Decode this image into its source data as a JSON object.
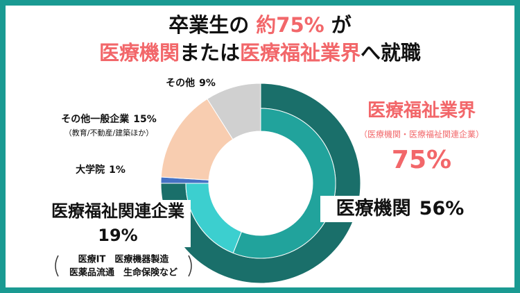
{
  "chart_data": {
    "type": "donut",
    "title": {
      "line1": [
        "卒業生の",
        "約75%",
        "が"
      ],
      "line2": [
        "医療機関",
        "または",
        "医療福祉業界",
        "へ就職"
      ]
    },
    "categories": [
      "医療機関",
      "医療福祉関連企業",
      "大学院",
      "その他一般企業",
      "その他"
    ],
    "values": [
      56,
      19,
      1,
      15,
      9
    ],
    "value_labels": [
      "56%",
      "19%",
      "1%",
      "15%",
      "9%"
    ],
    "colors": [
      "#21a39c",
      "#3ccfcf",
      "#4472c4",
      "#f8cdb0",
      "#d0d0d0"
    ],
    "group": {
      "name": "医療福祉業界",
      "note": "（医療機関・医療福祉関連企業）",
      "value": 75,
      "value_label": "75%",
      "color": "#1a6f6a"
    },
    "notes": {
      "others_general": "（教育/不動産/建築ほか）",
      "related": [
        "医療IT　医療機器製造",
        "医薬品流通　生命保険など"
      ]
    }
  }
}
